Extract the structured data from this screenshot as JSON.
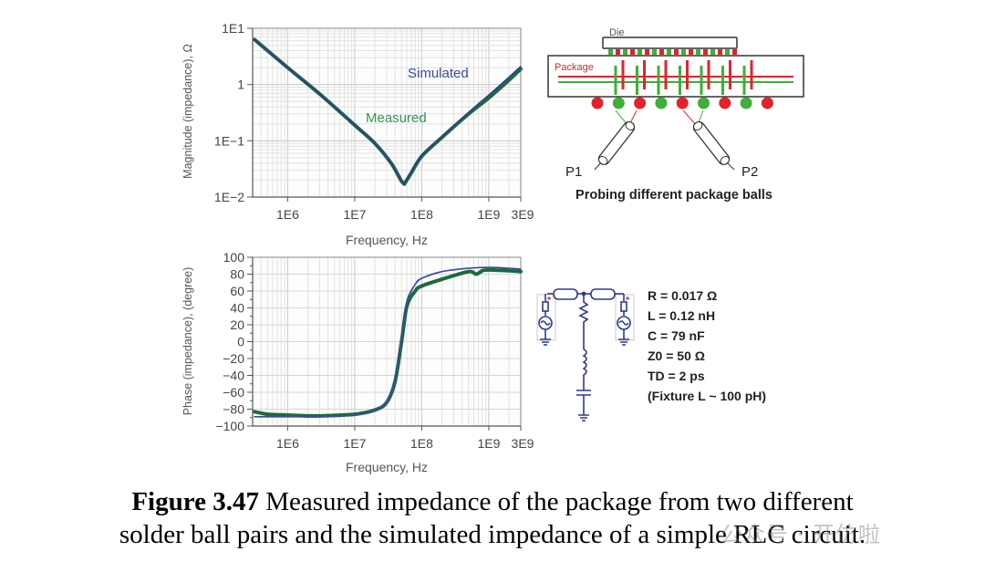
{
  "chart_data": [
    {
      "type": "line",
      "name": "magnitude",
      "title": "",
      "xlabel": "Frequency, Hz",
      "ylabel": "Magnitude (impedance), Ω",
      "xscale": "log",
      "yscale": "log",
      "xlim": [
        300000,
        3000000000
      ],
      "ylim": [
        0.01,
        10
      ],
      "grid": true,
      "xticks": [
        {
          "value": 1000000,
          "label": "1E6"
        },
        {
          "value": 10000000,
          "label": "1E7"
        },
        {
          "value": 100000000,
          "label": "1E8"
        },
        {
          "value": 1000000000,
          "label": "1E9"
        },
        {
          "value": 3000000000,
          "label": "3E9"
        }
      ],
      "yticks": [
        {
          "value": 10,
          "label": "1E1"
        },
        {
          "value": 1,
          "label": "1"
        },
        {
          "value": 0.1,
          "label": "1E−1"
        },
        {
          "value": 0.01,
          "label": "1E−2"
        }
      ],
      "annotations": [
        {
          "text": "Simulated",
          "color": "#3b4a9a"
        },
        {
          "text": "Measured",
          "color": "#2e9a4a"
        }
      ],
      "series": [
        {
          "name": "Simulated",
          "color": "#2f3f8f",
          "x": [
            320000,
            1000000,
            3000000,
            10000000,
            20000000,
            35000000,
            50000000,
            55000000,
            70000000,
            100000000,
            200000000,
            500000000,
            1000000000,
            2000000000,
            3000000000
          ],
          "y": [
            6.3,
            2.0,
            0.68,
            0.19,
            0.09,
            0.04,
            0.019,
            0.017,
            0.028,
            0.055,
            0.12,
            0.32,
            0.65,
            1.35,
            2.1
          ]
        },
        {
          "name": "Measured",
          "color": "#1d6a3c",
          "x": [
            320000,
            1000000,
            3000000,
            10000000,
            20000000,
            35000000,
            50000000,
            55000000,
            70000000,
            100000000,
            200000000,
            500000000,
            1000000000,
            2000000000,
            3000000000
          ],
          "y": [
            6.3,
            2.0,
            0.68,
            0.19,
            0.09,
            0.04,
            0.019,
            0.017,
            0.027,
            0.053,
            0.115,
            0.3,
            0.58,
            1.2,
            1.9
          ]
        }
      ]
    },
    {
      "type": "line",
      "name": "phase",
      "title": "",
      "xlabel": "Frequency, Hz",
      "ylabel": "Phase (impedance), (degree)",
      "xscale": "log",
      "yscale": "linear",
      "xlim": [
        300000,
        3000000000
      ],
      "ylim": [
        -100,
        100
      ],
      "grid": true,
      "xticks": [
        {
          "value": 1000000,
          "label": "1E6"
        },
        {
          "value": 10000000,
          "label": "1E7"
        },
        {
          "value": 100000000,
          "label": "1E8"
        },
        {
          "value": 1000000000,
          "label": "1E9"
        },
        {
          "value": 3000000000,
          "label": "3E9"
        }
      ],
      "yticks": [
        {
          "value": 100,
          "label": "100"
        },
        {
          "value": 80,
          "label": "80"
        },
        {
          "value": 60,
          "label": "60"
        },
        {
          "value": 40,
          "label": "40"
        },
        {
          "value": 20,
          "label": "20"
        },
        {
          "value": 0,
          "label": "0"
        },
        {
          "value": -20,
          "label": "−20"
        },
        {
          "value": -40,
          "label": "−40"
        },
        {
          "value": -60,
          "label": "−60"
        },
        {
          "value": -80,
          "label": "−80"
        },
        {
          "value": -100,
          "label": "−100"
        }
      ],
      "series": [
        {
          "name": "Simulated",
          "color": "#3a4aa0",
          "x": [
            320000,
            1000000,
            3000000,
            10000000,
            20000000,
            30000000,
            40000000,
            50000000,
            60000000,
            80000000,
            100000000,
            200000000,
            500000000,
            1000000000,
            2000000000,
            3000000000
          ],
          "y": [
            -89,
            -89,
            -89,
            -87,
            -82,
            -72,
            -45,
            5,
            48,
            68,
            75,
            83,
            87,
            88,
            87,
            86
          ]
        },
        {
          "name": "Measured",
          "color": "#1d6a3c",
          "x": [
            320000,
            500000,
            1000000,
            3000000,
            10000000,
            20000000,
            30000000,
            40000000,
            50000000,
            60000000,
            80000000,
            100000000,
            200000000,
            500000000,
            650000000,
            800000000,
            1000000000,
            2000000000,
            3000000000
          ],
          "y": [
            -83,
            -86,
            -87,
            -88,
            -86,
            -81,
            -72,
            -47,
            0,
            42,
            60,
            66,
            74,
            83,
            80,
            84,
            85,
            84,
            83
          ]
        }
      ]
    }
  ],
  "diagram": {
    "die_label": "Die",
    "package_label": "Package",
    "probe1_label": "P1",
    "probe2_label": "P2",
    "caption": "Probing different package balls",
    "colors": {
      "red": "#e0242a",
      "green": "#3fae3a",
      "outline": "#333333"
    }
  },
  "circuit": {
    "params": [
      "R = 0.017 Ω",
      "L = 0.12 nH",
      "C = 79 nF",
      "Z0 = 50 Ω",
      "TD = 2 ps",
      "(Fixture L ~ 100 pH)"
    ],
    "color": "#2f3a8c"
  },
  "caption": {
    "label": "Figure 3.47",
    "line1": " Measured impedance of the package from two different",
    "line2": "solder ball pairs and the simulated impedance of a simple RLC circuit."
  },
  "watermark": "公众号 · 开仿啦"
}
